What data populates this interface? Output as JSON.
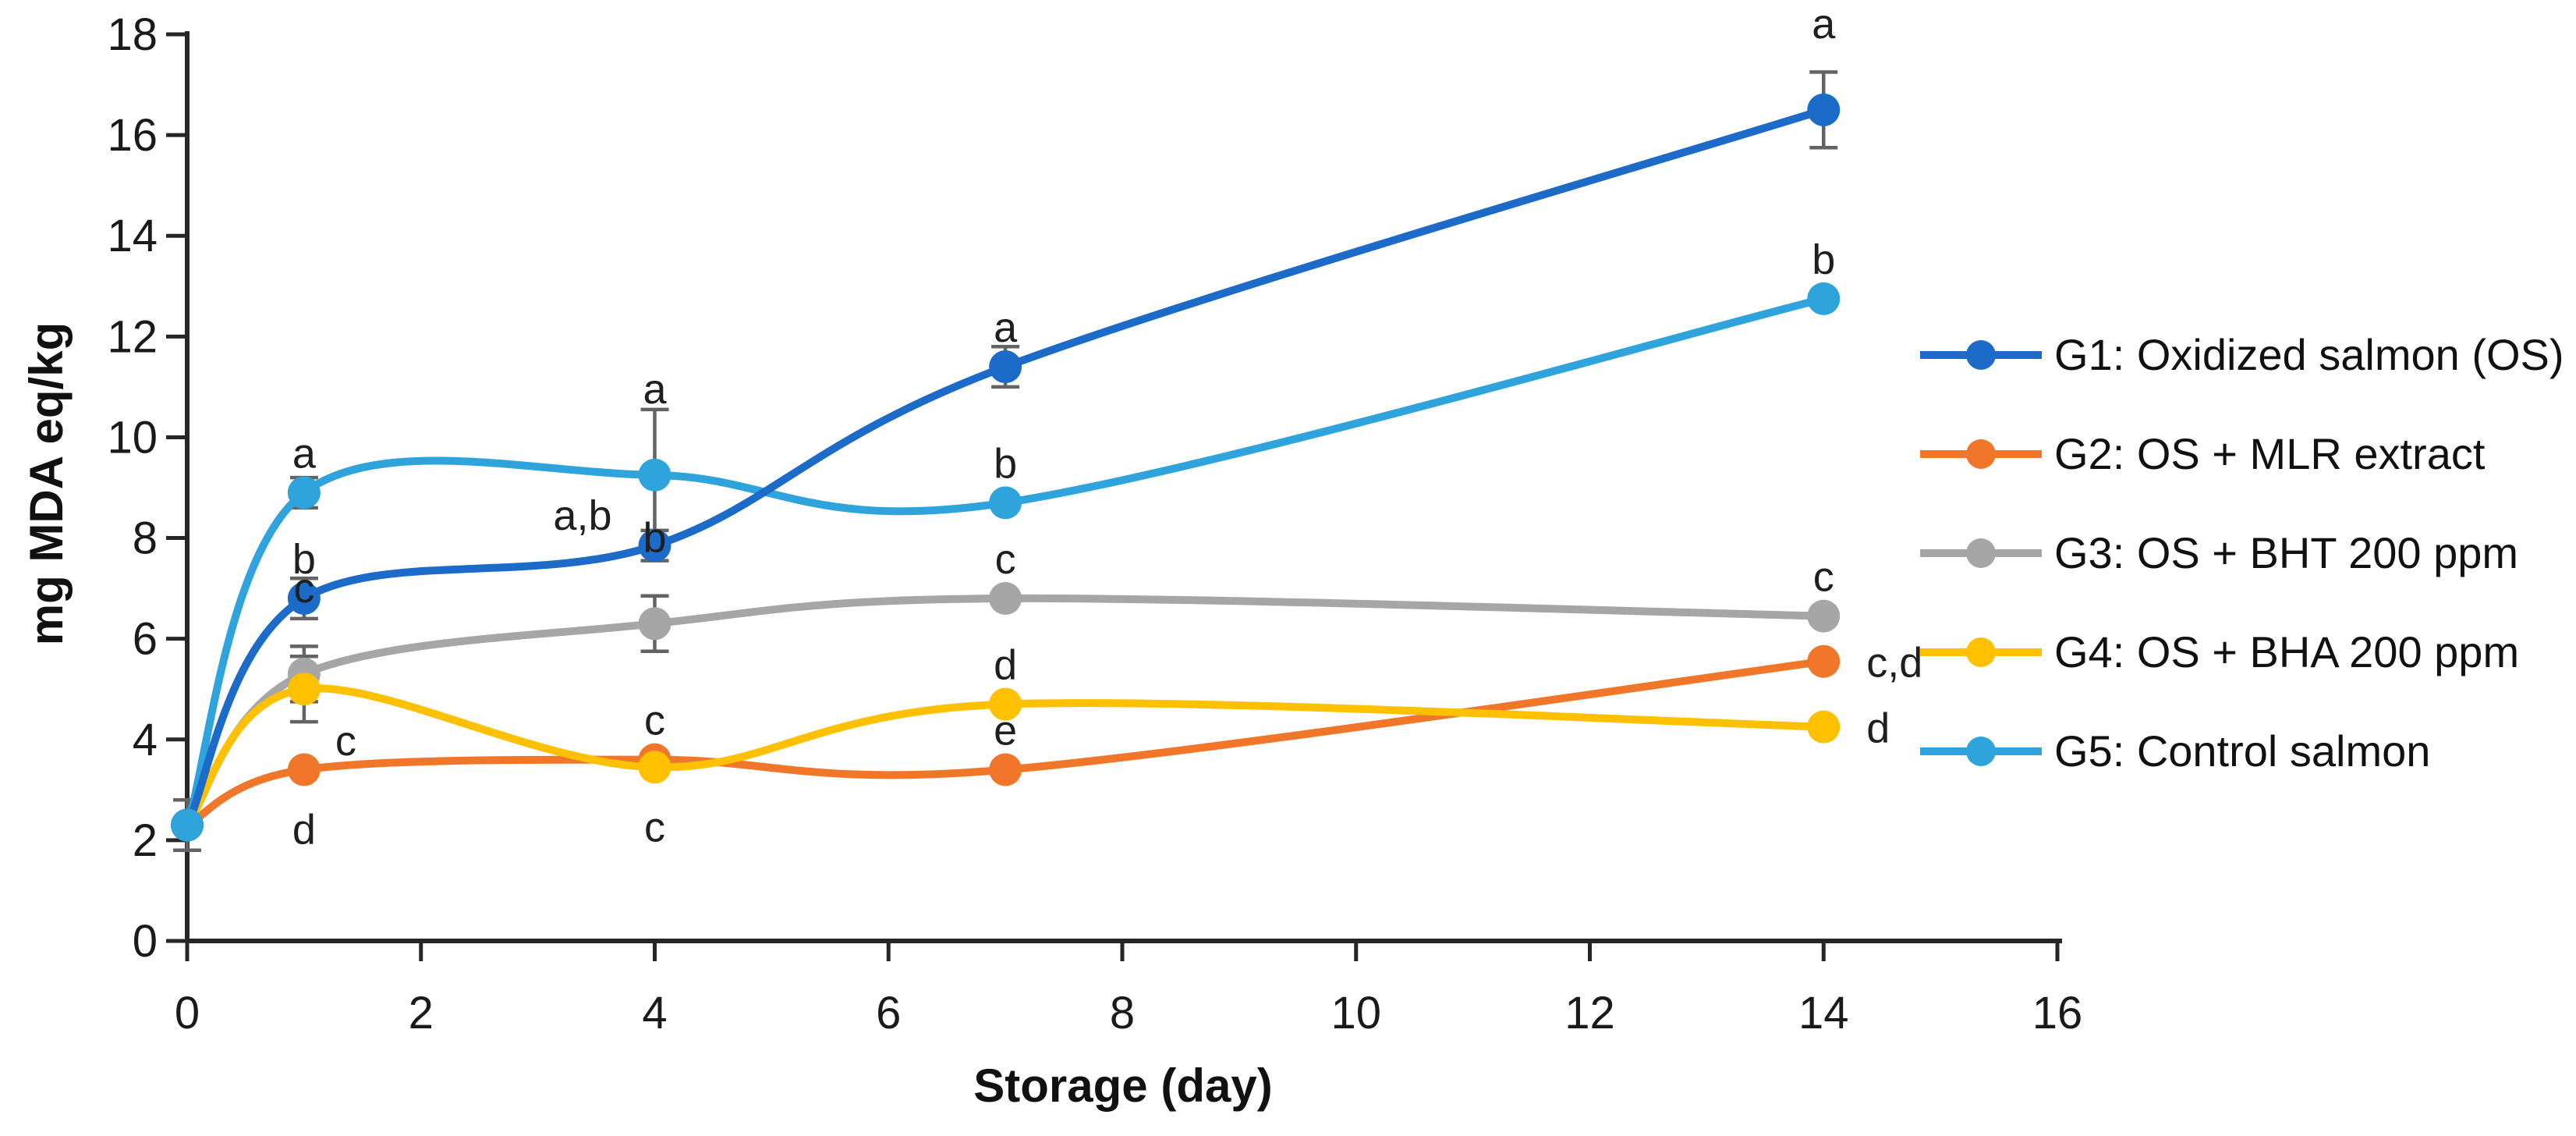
{
  "chart_data": {
    "type": "line",
    "title": "",
    "xlabel": "Storage (day)",
    "ylabel": "mg MDA eq/kg",
    "xlim": [
      0,
      16
    ],
    "ylim": [
      0,
      18
    ],
    "x_ticks": [
      0,
      2,
      4,
      6,
      8,
      10,
      12,
      14,
      16
    ],
    "y_ticks": [
      0,
      2,
      4,
      6,
      8,
      10,
      12,
      14,
      16,
      18
    ],
    "grid": false,
    "legend_position": "right",
    "x": [
      0,
      1,
      4,
      7,
      14
    ],
    "series": [
      {
        "name": "G1: Oxidized salmon (OS)",
        "color": "#1c6bc8",
        "values": [
          2.3,
          6.8,
          7.85,
          11.4,
          16.5
        ],
        "errors": [
          0,
          0.4,
          0.3,
          0.4,
          0.75
        ],
        "letters": [
          "",
          "b",
          "a,b",
          "a",
          "a"
        ],
        "letter_pos": [
          "",
          "above",
          "left",
          "above",
          "above2"
        ]
      },
      {
        "name": "G2: OS + MLR extract",
        "color": "#f0772a",
        "values": [
          2.3,
          3.4,
          3.6,
          3.4,
          5.55
        ],
        "errors": [
          0,
          0,
          0,
          0,
          0
        ],
        "letters": [
          "",
          "d",
          "c",
          "e",
          "c,d"
        ],
        "letter_pos": [
          "",
          "below",
          "above",
          "above",
          "right"
        ]
      },
      {
        "name": "G3: OS + BHT 200 ppm",
        "color": "#a6a6a6",
        "values": [
          2.3,
          5.3,
          6.3,
          6.8,
          6.45
        ],
        "errors": [
          0,
          0.55,
          0.55,
          0,
          0
        ],
        "letters": [
          "",
          "c",
          "b",
          "c",
          "c"
        ],
        "letter_pos": [
          "",
          "above2",
          "above2",
          "above",
          "above"
        ]
      },
      {
        "name": "G4: OS + BHA 200 ppm",
        "color": "#ffc000",
        "values": [
          2.3,
          5.0,
          3.45,
          4.7,
          4.25
        ],
        "errors": [
          0,
          0.65,
          0,
          0,
          0
        ],
        "letters": [
          "",
          "c",
          "c",
          "d",
          "d"
        ],
        "letter_pos": [
          "",
          "belowright",
          "below",
          "above",
          "right"
        ]
      },
      {
        "name": "G5: Control salmon",
        "color": "#2fa3dc",
        "values": [
          2.3,
          8.9,
          9.25,
          8.7,
          12.75
        ],
        "errors": [
          0.5,
          0.3,
          1.3,
          0,
          0
        ],
        "letters": [
          "",
          "a",
          "a",
          "b",
          "b"
        ],
        "letter_pos": [
          "",
          "above",
          "above2",
          "above",
          "above"
        ]
      }
    ],
    "error_bar_color": "#636363",
    "axis_color": "#262626",
    "text_color": "#1a1a1a"
  }
}
